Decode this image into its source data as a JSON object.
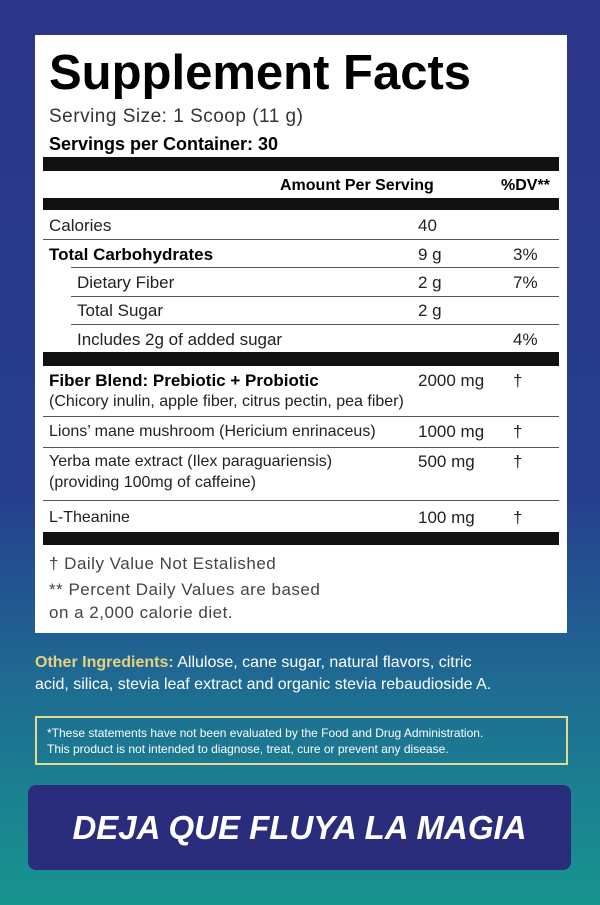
{
  "facts": {
    "title": "Supplement Facts",
    "serving_size": "Serving Size: 1 Scoop (11 g)",
    "servings_per_container": "Servings per Container: 30",
    "header": {
      "amount": "Amount Per Serving",
      "dv": "%DV**"
    },
    "rows": [
      {
        "name": "Calories",
        "amount": "40"
      },
      {
        "name": "Total Carbohydrates",
        "amount": "9 g",
        "dv": "3%"
      },
      {
        "name": "Dietary Fiber",
        "amount": "2 g",
        "dv": "7%"
      },
      {
        "name": "Total Sugar",
        "amount": "2 g"
      },
      {
        "name": "Includes 2g of added sugar",
        "dv": "4%"
      },
      {
        "name": "Fiber Blend: Prebiotic + Probiotic",
        "detail": "(Chicory inulin, apple fiber, citrus pectin, pea fiber)",
        "amount": "2000 mg",
        "dv": "†"
      },
      {
        "name": "Lions’ mane mushroom (Hericium enrinaceus)",
        "amount": "1000 mg",
        "dv": "†"
      },
      {
        "name": "Yerba mate extract (Ilex paraguariensis)",
        "detail": "(providing 100mg of caffeine)",
        "amount": "500 mg",
        "dv": "†"
      },
      {
        "name": "L-Theanine",
        "amount": "100 mg",
        "dv": "†"
      }
    ],
    "footnotes": [
      "† Daily Value Not Estalished",
      "** Percent Daily Values are based",
      "on a 2,000 calorie diet."
    ]
  },
  "other_ingredients": {
    "label": "Other Ingredients:",
    "text": "Allulose, cane sugar, natural flavors, citric",
    "text2": "acid, silica, stevia leaf extract and organic stevia rebaudioside A."
  },
  "disclaimer": [
    "*These statements have not been evaluated by the Food and Drug Administration.",
    "This product is not intended to diagnose, treat, cure or prevent any disease."
  ],
  "banner": "DEJA QUE FLUYA LA MAGIA"
}
